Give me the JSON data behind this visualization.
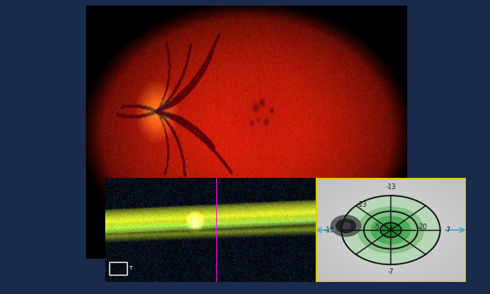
{
  "bg_color": "#1a2a4a",
  "fig_width": 6.1,
  "fig_height": 3.67,
  "dpi": 100,
  "yellow_border_color": "#ddcc00",
  "arrow_color": "#44aacc"
}
